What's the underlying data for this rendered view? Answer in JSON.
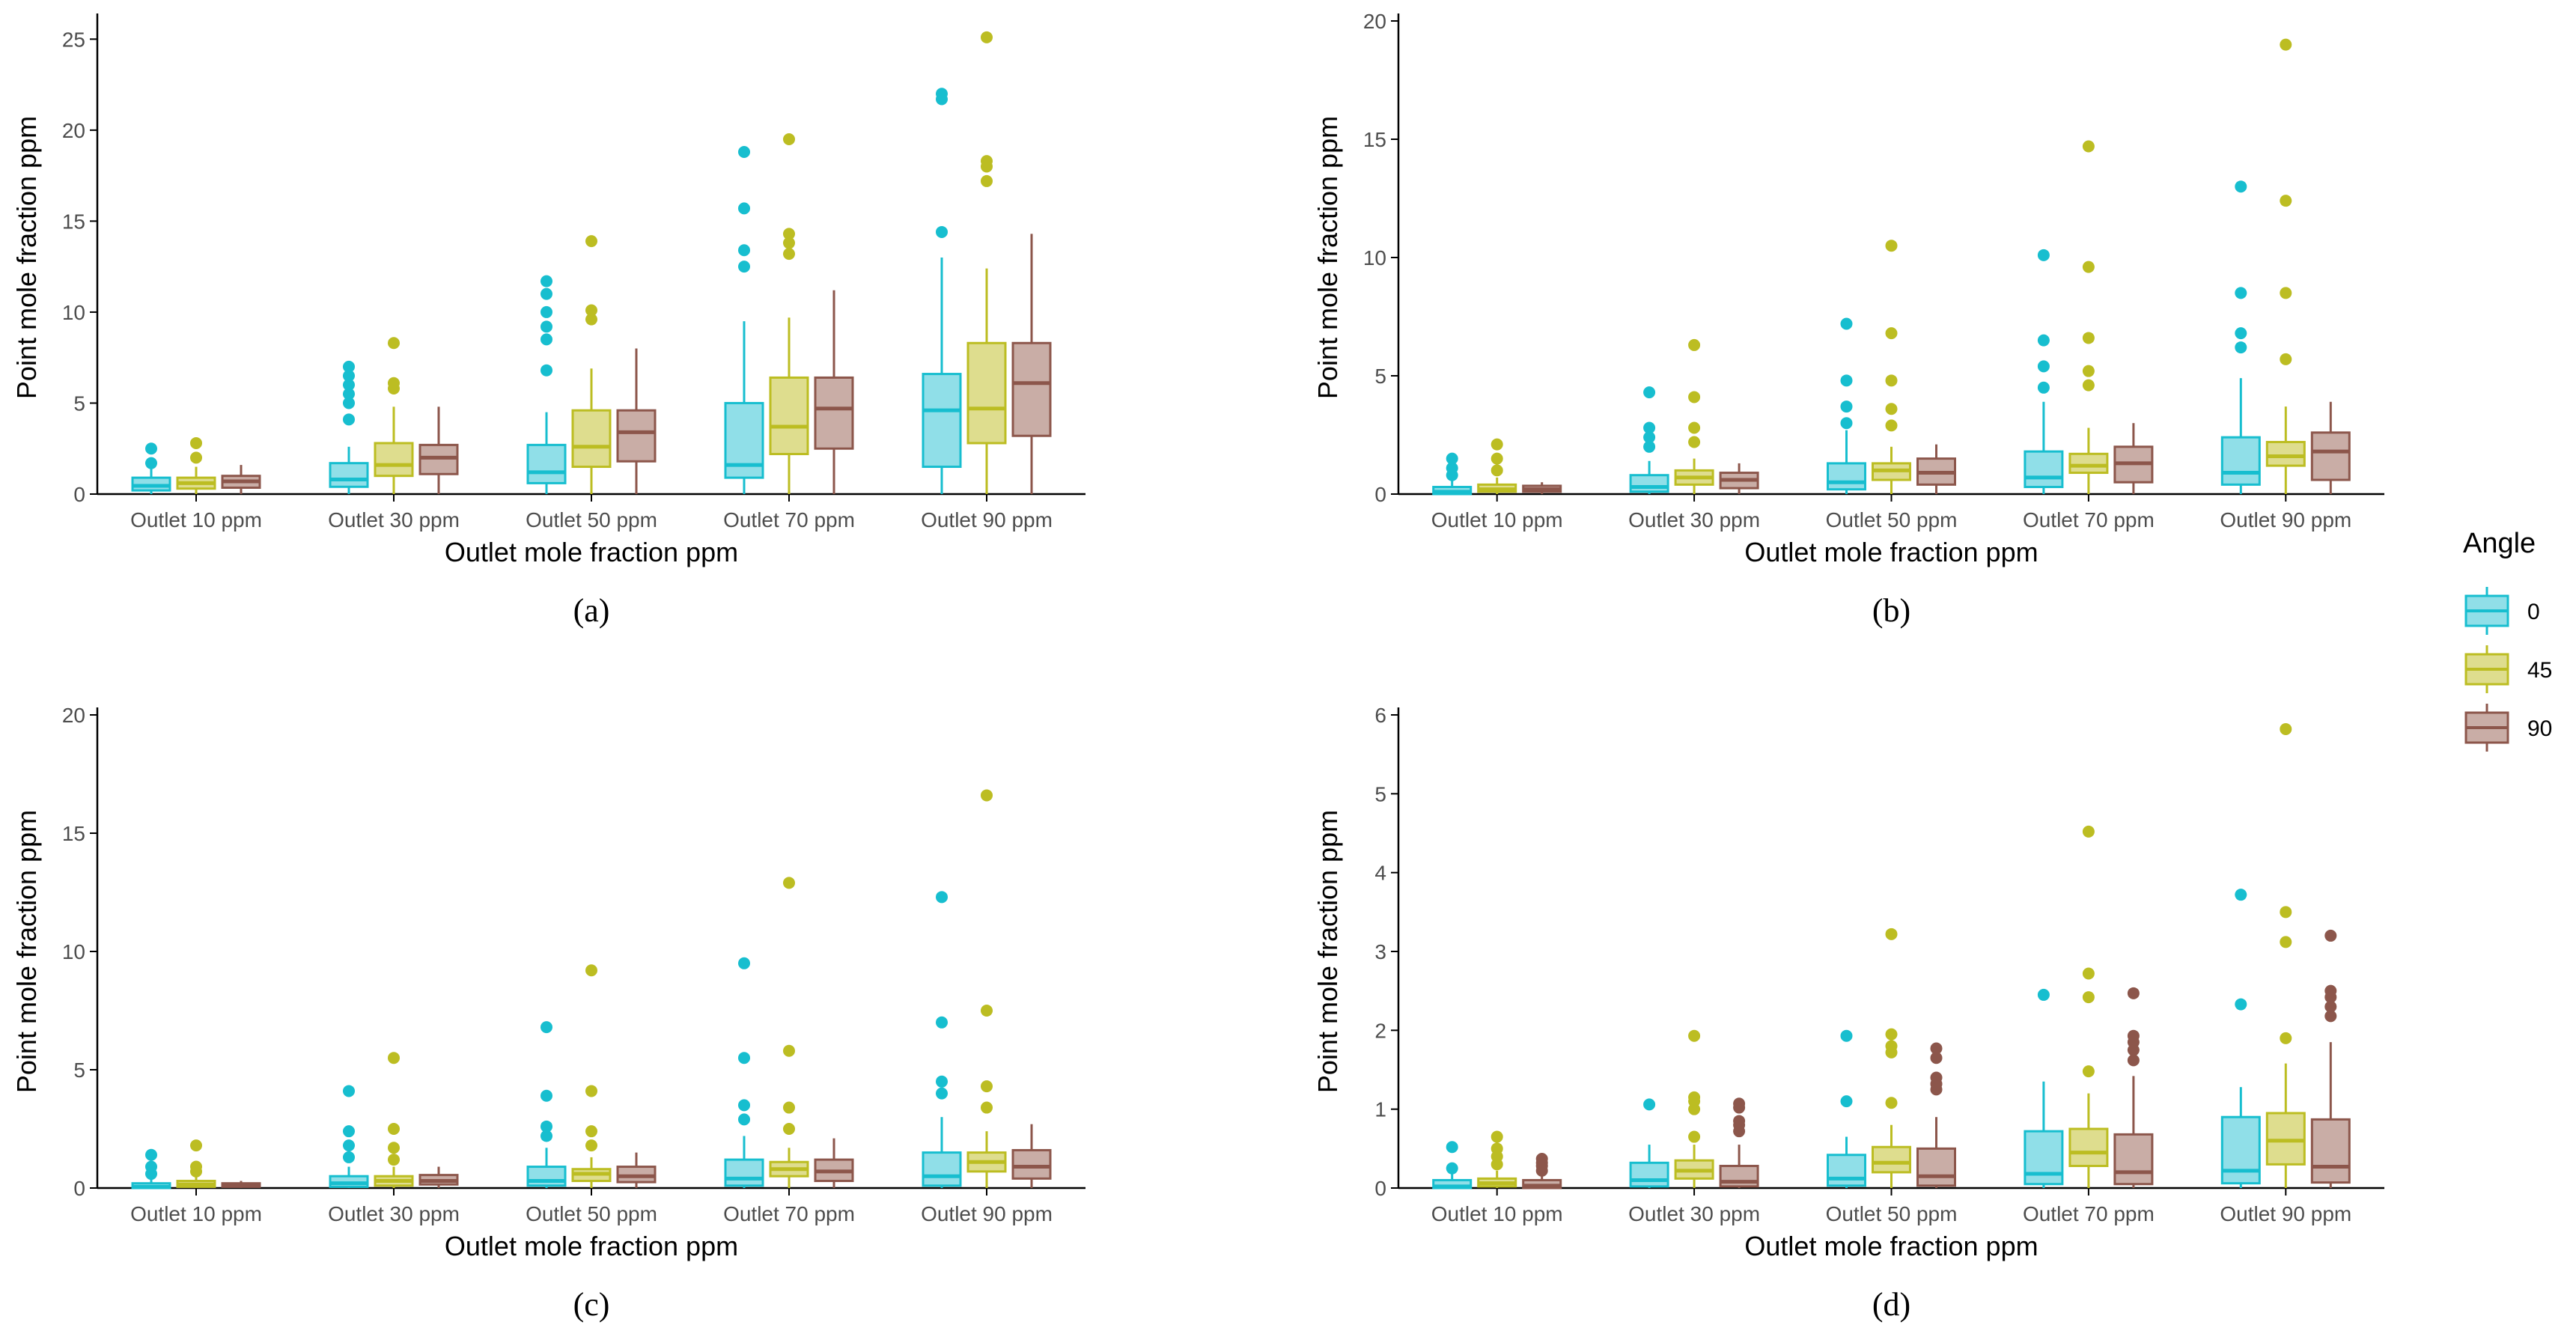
{
  "chart_data": [
    {
      "type": "boxplot",
      "panel_label": "(a)",
      "xlabel": "Outlet mole fraction ppm",
      "ylabel": "Point mole fraction ppm",
      "categories": [
        "Outlet 10 ppm",
        "Outlet 30 ppm",
        "Outlet 50 ppm",
        "Outlet 70 ppm",
        "Outlet 90 ppm"
      ],
      "ylim": [
        0,
        26
      ],
      "yticks": [
        0,
        5,
        10,
        15,
        20,
        25
      ],
      "series": [
        {
          "name": "0",
          "boxes": [
            {
              "lo": 0,
              "q1": 0.2,
              "med": 0.45,
              "q3": 0.9,
              "hi": 1.4,
              "outliers": [
                1.7,
                2.5
              ]
            },
            {
              "lo": 0,
              "q1": 0.4,
              "med": 0.8,
              "q3": 1.7,
              "hi": 2.6,
              "outliers": [
                4.1,
                5.0,
                5.5,
                6.0,
                6.5,
                7.0
              ]
            },
            {
              "lo": 0,
              "q1": 0.6,
              "med": 1.2,
              "q3": 2.7,
              "hi": 4.5,
              "outliers": [
                6.8,
                8.5,
                9.2,
                10.0,
                11.0,
                11.7
              ]
            },
            {
              "lo": 0,
              "q1": 0.9,
              "med": 1.6,
              "q3": 5.0,
              "hi": 9.5,
              "outliers": [
                12.5,
                13.4,
                15.7,
                18.8
              ]
            },
            {
              "lo": 0,
              "q1": 1.5,
              "med": 4.6,
              "q3": 6.6,
              "hi": 13.0,
              "outliers": [
                14.4,
                21.7,
                22.0
              ]
            }
          ]
        },
        {
          "name": "45",
          "boxes": [
            {
              "lo": 0,
              "q1": 0.3,
              "med": 0.6,
              "q3": 0.9,
              "hi": 1.5,
              "outliers": [
                2.0,
                2.8
              ]
            },
            {
              "lo": 0,
              "q1": 1.0,
              "med": 1.6,
              "q3": 2.8,
              "hi": 4.8,
              "outliers": [
                5.8,
                6.1,
                8.3
              ]
            },
            {
              "lo": 0,
              "q1": 1.5,
              "med": 2.6,
              "q3": 4.6,
              "hi": 6.9,
              "outliers": [
                9.6,
                10.1,
                13.9
              ]
            },
            {
              "lo": 0,
              "q1": 2.2,
              "med": 3.7,
              "q3": 6.4,
              "hi": 9.7,
              "outliers": [
                13.2,
                13.8,
                14.3,
                19.5
              ]
            },
            {
              "lo": 0,
              "q1": 2.8,
              "med": 4.7,
              "q3": 8.3,
              "hi": 12.4,
              "outliers": [
                17.2,
                18.0,
                18.3,
                25.1
              ]
            }
          ]
        },
        {
          "name": "90",
          "boxes": [
            {
              "lo": 0,
              "q1": 0.35,
              "med": 0.7,
              "q3": 1.0,
              "hi": 1.6,
              "outliers": []
            },
            {
              "lo": 0,
              "q1": 1.1,
              "med": 2.0,
              "q3": 2.7,
              "hi": 4.8,
              "outliers": []
            },
            {
              "lo": 0,
              "q1": 1.8,
              "med": 3.4,
              "q3": 4.6,
              "hi": 8.0,
              "outliers": []
            },
            {
              "lo": 0,
              "q1": 2.5,
              "med": 4.7,
              "q3": 6.4,
              "hi": 11.2,
              "outliers": []
            },
            {
              "lo": 0,
              "q1": 3.2,
              "med": 6.1,
              "q3": 8.3,
              "hi": 14.3,
              "outliers": []
            }
          ]
        }
      ]
    },
    {
      "type": "boxplot",
      "panel_label": "(b)",
      "xlabel": "Outlet mole fraction ppm",
      "ylabel": "Point mole fraction ppm",
      "categories": [
        "Outlet 10 ppm",
        "Outlet 30 ppm",
        "Outlet 50 ppm",
        "Outlet 70 ppm",
        "Outlet 90 ppm"
      ],
      "ylim": [
        0,
        20
      ],
      "yticks": [
        0,
        5,
        10,
        15,
        20
      ],
      "series": [
        {
          "name": "0",
          "boxes": [
            {
              "lo": 0,
              "q1": 0.0,
              "med": 0.1,
              "q3": 0.3,
              "hi": 0.6,
              "outliers": [
                0.8,
                1.1,
                1.5
              ]
            },
            {
              "lo": 0,
              "q1": 0.1,
              "med": 0.3,
              "q3": 0.8,
              "hi": 1.4,
              "outliers": [
                2.0,
                2.4,
                2.8,
                4.3
              ]
            },
            {
              "lo": 0,
              "q1": 0.2,
              "med": 0.5,
              "q3": 1.3,
              "hi": 2.7,
              "outliers": [
                3.0,
                3.7,
                4.8,
                7.2
              ]
            },
            {
              "lo": 0,
              "q1": 0.3,
              "med": 0.7,
              "q3": 1.8,
              "hi": 3.9,
              "outliers": [
                4.5,
                5.4,
                6.5,
                10.1
              ]
            },
            {
              "lo": 0,
              "q1": 0.4,
              "med": 0.9,
              "q3": 2.4,
              "hi": 4.9,
              "outliers": [
                6.2,
                6.8,
                8.5,
                13.0
              ]
            }
          ]
        },
        {
          "name": "45",
          "boxes": [
            {
              "lo": 0,
              "q1": 0.1,
              "med": 0.2,
              "q3": 0.4,
              "hi": 0.7,
              "outliers": [
                1.0,
                1.5,
                2.1
              ]
            },
            {
              "lo": 0,
              "q1": 0.4,
              "med": 0.7,
              "q3": 1.0,
              "hi": 1.5,
              "outliers": [
                2.2,
                2.8,
                4.1,
                6.3
              ]
            },
            {
              "lo": 0,
              "q1": 0.6,
              "med": 1.0,
              "q3": 1.3,
              "hi": 2.0,
              "outliers": [
                2.9,
                3.6,
                4.8,
                6.8,
                10.5
              ]
            },
            {
              "lo": 0,
              "q1": 0.9,
              "med": 1.2,
              "q3": 1.7,
              "hi": 2.8,
              "outliers": [
                4.6,
                5.2,
                6.6,
                9.6,
                14.7
              ]
            },
            {
              "lo": 0,
              "q1": 1.2,
              "med": 1.6,
              "q3": 2.2,
              "hi": 3.7,
              "outliers": [
                5.7,
                8.5,
                12.4,
                19.0
              ]
            }
          ]
        },
        {
          "name": "90",
          "boxes": [
            {
              "lo": 0,
              "q1": 0.1,
              "med": 0.2,
              "q3": 0.35,
              "hi": 0.5,
              "outliers": []
            },
            {
              "lo": 0,
              "q1": 0.25,
              "med": 0.6,
              "q3": 0.9,
              "hi": 1.3,
              "outliers": []
            },
            {
              "lo": 0,
              "q1": 0.4,
              "med": 0.9,
              "q3": 1.5,
              "hi": 2.1,
              "outliers": []
            },
            {
              "lo": 0,
              "q1": 0.5,
              "med": 1.3,
              "q3": 2.0,
              "hi": 3.0,
              "outliers": []
            },
            {
              "lo": 0,
              "q1": 0.6,
              "med": 1.8,
              "q3": 2.6,
              "hi": 3.9,
              "outliers": []
            }
          ]
        }
      ]
    },
    {
      "type": "boxplot",
      "panel_label": "(c)",
      "xlabel": "Outlet mole fraction ppm",
      "ylabel": "Point mole fraction ppm",
      "categories": [
        "Outlet 10 ppm",
        "Outlet 30 ppm",
        "Outlet 50 ppm",
        "Outlet 70 ppm",
        "Outlet 90 ppm"
      ],
      "ylim": [
        0,
        20
      ],
      "yticks": [
        0,
        5,
        10,
        15,
        20
      ],
      "series": [
        {
          "name": "0",
          "boxes": [
            {
              "lo": 0,
              "q1": 0.0,
              "med": 0.05,
              "q3": 0.2,
              "hi": 0.4,
              "outliers": [
                0.6,
                0.9,
                1.4
              ]
            },
            {
              "lo": 0,
              "q1": 0.05,
              "med": 0.2,
              "q3": 0.5,
              "hi": 0.9,
              "outliers": [
                1.3,
                1.8,
                2.4,
                4.1
              ]
            },
            {
              "lo": 0,
              "q1": 0.1,
              "med": 0.3,
              "q3": 0.9,
              "hi": 1.7,
              "outliers": [
                2.2,
                2.6,
                3.9,
                6.8
              ]
            },
            {
              "lo": 0,
              "q1": 0.1,
              "med": 0.4,
              "q3": 1.2,
              "hi": 2.2,
              "outliers": [
                2.9,
                3.5,
                5.5,
                9.5
              ]
            },
            {
              "lo": 0,
              "q1": 0.1,
              "med": 0.5,
              "q3": 1.5,
              "hi": 3.0,
              "outliers": [
                4.0,
                4.5,
                7.0,
                12.3
              ]
            }
          ]
        },
        {
          "name": "45",
          "boxes": [
            {
              "lo": 0,
              "q1": 0.05,
              "med": 0.15,
              "q3": 0.3,
              "hi": 0.5,
              "outliers": [
                0.7,
                0.9,
                1.8
              ]
            },
            {
              "lo": 0,
              "q1": 0.1,
              "med": 0.3,
              "q3": 0.5,
              "hi": 0.9,
              "outliers": [
                1.2,
                1.7,
                2.5,
                5.5
              ]
            },
            {
              "lo": 0,
              "q1": 0.3,
              "med": 0.6,
              "q3": 0.8,
              "hi": 1.3,
              "outliers": [
                1.8,
                2.4,
                4.1,
                9.2
              ]
            },
            {
              "lo": 0,
              "q1": 0.5,
              "med": 0.8,
              "q3": 1.1,
              "hi": 1.7,
              "outliers": [
                2.5,
                3.4,
                5.8,
                12.9
              ]
            },
            {
              "lo": 0,
              "q1": 0.7,
              "med": 1.1,
              "q3": 1.5,
              "hi": 2.4,
              "outliers": [
                3.4,
                4.3,
                7.5,
                16.6
              ]
            }
          ]
        },
        {
          "name": "90",
          "boxes": [
            {
              "lo": 0,
              "q1": 0.05,
              "med": 0.1,
              "q3": 0.2,
              "hi": 0.3,
              "outliers": []
            },
            {
              "lo": 0,
              "q1": 0.15,
              "med": 0.3,
              "q3": 0.55,
              "hi": 0.9,
              "outliers": []
            },
            {
              "lo": 0,
              "q1": 0.25,
              "med": 0.5,
              "q3": 0.9,
              "hi": 1.5,
              "outliers": []
            },
            {
              "lo": 0,
              "q1": 0.3,
              "med": 0.7,
              "q3": 1.2,
              "hi": 2.1,
              "outliers": []
            },
            {
              "lo": 0,
              "q1": 0.4,
              "med": 0.9,
              "q3": 1.6,
              "hi": 2.7,
              "outliers": []
            }
          ]
        }
      ]
    },
    {
      "type": "boxplot",
      "panel_label": "(d)",
      "xlabel": "Outlet mole fraction ppm",
      "ylabel": "Point mole fraction ppm",
      "categories": [
        "Outlet 10 ppm",
        "Outlet 30 ppm",
        "Outlet 50 ppm",
        "Outlet 70 ppm",
        "Outlet 90 ppm"
      ],
      "ylim": [
        0,
        6
      ],
      "yticks": [
        0,
        1,
        2,
        3,
        4,
        5,
        6
      ],
      "series": [
        {
          "name": "0",
          "boxes": [
            {
              "lo": 0,
              "q1": 0.0,
              "med": 0.02,
              "q3": 0.1,
              "hi": 0.18,
              "outliers": [
                0.25,
                0.52
              ]
            },
            {
              "lo": 0,
              "q1": 0.02,
              "med": 0.1,
              "q3": 0.32,
              "hi": 0.55,
              "outliers": [
                1.06
              ]
            },
            {
              "lo": 0,
              "q1": 0.03,
              "med": 0.12,
              "q3": 0.42,
              "hi": 0.65,
              "outliers": [
                1.1,
                1.93
              ]
            },
            {
              "lo": 0,
              "q1": 0.05,
              "med": 0.18,
              "q3": 0.72,
              "hi": 1.35,
              "outliers": [
                2.45
              ]
            },
            {
              "lo": 0,
              "q1": 0.06,
              "med": 0.22,
              "q3": 0.9,
              "hi": 1.28,
              "outliers": [
                2.33,
                3.72
              ]
            }
          ]
        },
        {
          "name": "45",
          "boxes": [
            {
              "lo": 0,
              "q1": 0.02,
              "med": 0.06,
              "q3": 0.12,
              "hi": 0.22,
              "outliers": [
                0.3,
                0.4,
                0.5,
                0.65
              ]
            },
            {
              "lo": 0,
              "q1": 0.12,
              "med": 0.22,
              "q3": 0.35,
              "hi": 0.55,
              "outliers": [
                0.65,
                1.0,
                1.1,
                1.15,
                1.93
              ]
            },
            {
              "lo": 0,
              "q1": 0.2,
              "med": 0.32,
              "q3": 0.52,
              "hi": 0.8,
              "outliers": [
                1.08,
                1.72,
                1.8,
                1.95,
                3.22
              ]
            },
            {
              "lo": 0,
              "q1": 0.28,
              "med": 0.45,
              "q3": 0.75,
              "hi": 1.2,
              "outliers": [
                1.48,
                2.42,
                2.72,
                4.52
              ]
            },
            {
              "lo": 0,
              "q1": 0.3,
              "med": 0.6,
              "q3": 0.95,
              "hi": 1.58,
              "outliers": [
                1.9,
                3.12,
                3.5,
                5.82
              ]
            }
          ]
        },
        {
          "name": "90",
          "boxes": [
            {
              "lo": 0,
              "q1": 0.0,
              "med": 0.03,
              "q3": 0.1,
              "hi": 0.2,
              "outliers": [
                0.22,
                0.28,
                0.32,
                0.37
              ]
            },
            {
              "lo": 0,
              "q1": 0.02,
              "med": 0.08,
              "q3": 0.28,
              "hi": 0.55,
              "outliers": [
                0.72,
                0.8,
                0.85,
                1.02,
                1.07
              ]
            },
            {
              "lo": 0,
              "q1": 0.03,
              "med": 0.15,
              "q3": 0.5,
              "hi": 0.9,
              "outliers": [
                1.25,
                1.32,
                1.4,
                1.65,
                1.77
              ]
            },
            {
              "lo": 0,
              "q1": 0.05,
              "med": 0.2,
              "q3": 0.68,
              "hi": 1.42,
              "outliers": [
                1.62,
                1.75,
                1.85,
                1.93,
                2.47
              ]
            },
            {
              "lo": 0,
              "q1": 0.07,
              "med": 0.27,
              "q3": 0.87,
              "hi": 1.85,
              "outliers": [
                2.18,
                2.3,
                2.42,
                2.5,
                3.2
              ]
            }
          ]
        }
      ]
    }
  ],
  "legend": {
    "title": "Angle",
    "items": [
      {
        "label": "0",
        "stroke": "#17becf",
        "fill": "#90dfe8"
      },
      {
        "label": "45",
        "stroke": "#bcbd22",
        "fill": "#dedd8e"
      },
      {
        "label": "90",
        "stroke": "#8c564b",
        "fill": "#c9ada6"
      }
    ]
  }
}
